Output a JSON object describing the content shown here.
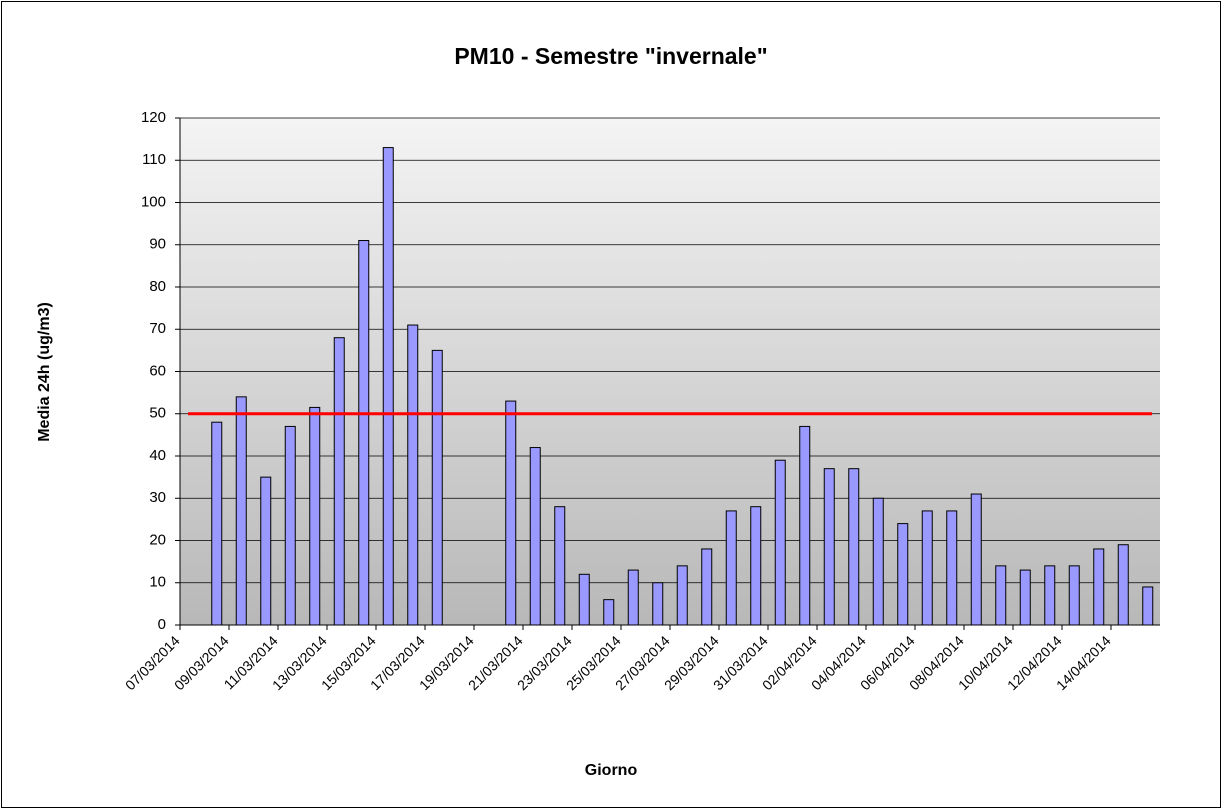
{
  "chart_data": {
    "type": "bar",
    "title": "PM10 - Semestre \"invernale\"",
    "x_label": "Giorno",
    "y_label": "Media 24h (ug/m3)",
    "categories": [
      "07/03/2014",
      null,
      "09/03/2014",
      null,
      "11/03/2014",
      null,
      "13/03/2014",
      null,
      "15/03/2014",
      null,
      "17/03/2014",
      null,
      "19/03/2014",
      null,
      "21/03/2014",
      null,
      "23/03/2014",
      null,
      "25/03/2014",
      null,
      "27/03/2014",
      null,
      "29/03/2014",
      null,
      "31/03/2014",
      null,
      "02/04/2014",
      null,
      "04/04/2014",
      null,
      "06/04/2014",
      null,
      "08/04/2014",
      null,
      "10/04/2014",
      null,
      "12/04/2014",
      null,
      "14/04/2014",
      null
    ],
    "values": [
      null,
      48,
      54,
      35,
      47,
      51.5,
      68,
      91,
      113,
      71,
      65,
      null,
      null,
      53,
      42,
      28,
      12,
      6,
      13,
      10,
      14,
      18,
      27,
      28,
      39,
      47,
      37,
      37,
      30,
      24,
      27,
      27,
      31,
      14,
      13,
      14,
      14,
      18,
      19,
      9
    ],
    "color": "#9999ff",
    "ylim": [
      0,
      120
    ],
    "yticks": [
      0,
      10,
      20,
      30,
      40,
      50,
      60,
      70,
      80,
      90,
      100,
      110,
      120
    ],
    "grid": true,
    "limit_line": {
      "value": 50,
      "color": "#ff0000"
    }
  }
}
